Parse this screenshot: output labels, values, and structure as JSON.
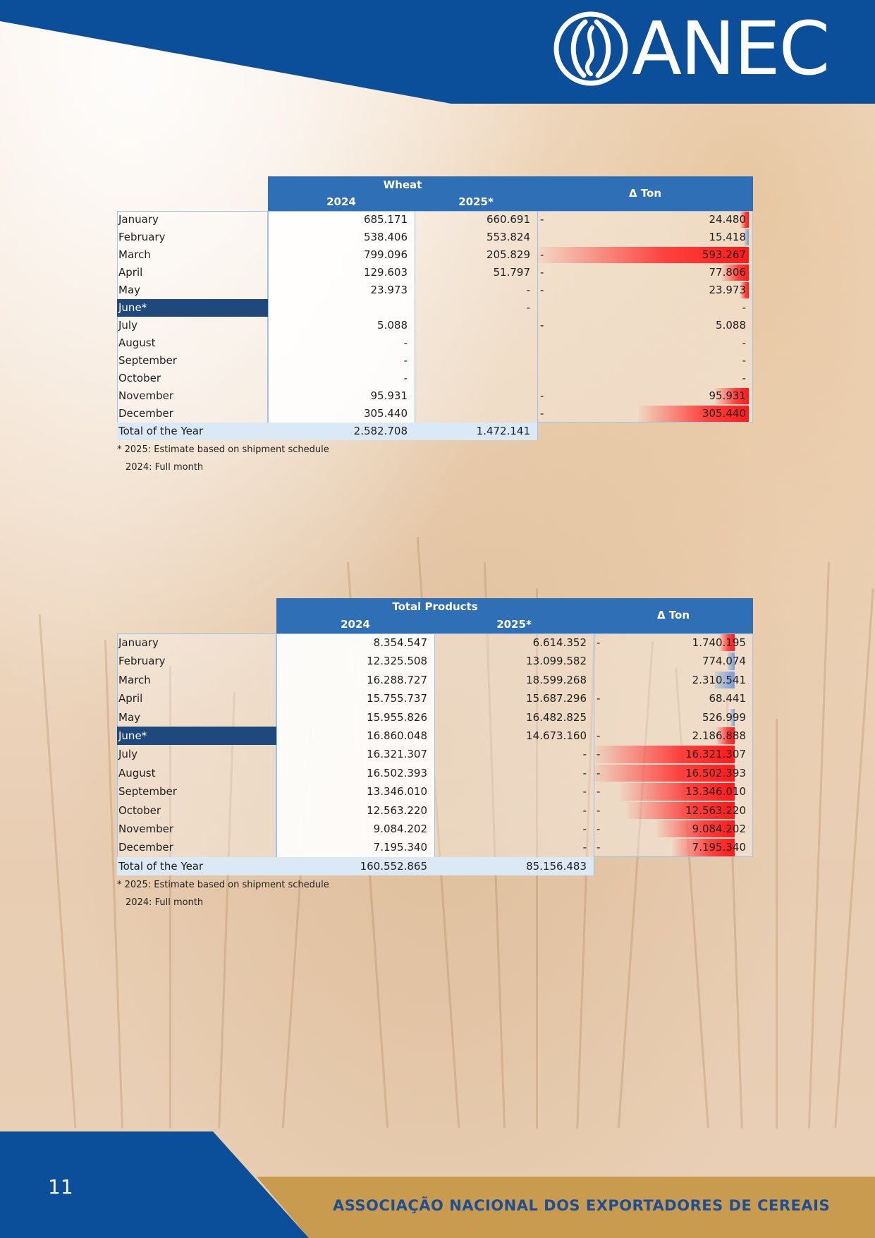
{
  "brand": {
    "name": "ANEC",
    "footer": "ASSOCIAÇÃO NACIONAL DOS EXPORTADORES DE CEREAIS",
    "page_number": "11",
    "colors": {
      "primary_blue": "#0b4f9a",
      "gold": "#c89b4e",
      "header_cell": "#2f6fb6",
      "highlight_row": "#1f497d"
    }
  },
  "wheat_table": {
    "title": "Wheat",
    "col_2024": "2024",
    "col_2025": "2025*",
    "col_delta": "Δ Ton",
    "rows": [
      {
        "month": "January",
        "v2024": "685.171",
        "v2025": "660.691",
        "sign": "-",
        "delta": "24.480",
        "bar": "red",
        "bar_frac": 0.04,
        "highlight": false
      },
      {
        "month": "February",
        "v2024": "538.406",
        "v2025": "553.824",
        "sign": "",
        "delta": "15.418",
        "bar": "blue",
        "bar_frac": 0.02,
        "highlight": false
      },
      {
        "month": "March",
        "v2024": "799.096",
        "v2025": "205.829",
        "sign": "-",
        "delta": "593.267",
        "bar": "red",
        "bar_frac": 1.0,
        "highlight": false
      },
      {
        "month": "April",
        "v2024": "129.603",
        "v2025": "51.797",
        "sign": "-",
        "delta": "77.806",
        "bar": "red",
        "bar_frac": 0.13,
        "highlight": false
      },
      {
        "month": "May",
        "v2024": "23.973",
        "v2025": "-",
        "sign": "-",
        "delta": "23.973",
        "bar": "red",
        "bar_frac": 0.04,
        "highlight": false
      },
      {
        "month": "June*",
        "v2024": "",
        "v2025": "-",
        "sign": "",
        "delta": "-",
        "bar": "",
        "bar_frac": 0,
        "highlight": true
      },
      {
        "month": "July",
        "v2024": "5.088",
        "v2025": "",
        "sign": "-",
        "delta": "5.088",
        "bar": "",
        "bar_frac": 0,
        "highlight": false
      },
      {
        "month": "August",
        "v2024": "-",
        "v2025": "",
        "sign": "",
        "delta": "-",
        "bar": "",
        "bar_frac": 0,
        "highlight": false
      },
      {
        "month": "September",
        "v2024": "-",
        "v2025": "",
        "sign": "",
        "delta": "-",
        "bar": "",
        "bar_frac": 0,
        "highlight": false
      },
      {
        "month": "October",
        "v2024": "-",
        "v2025": "",
        "sign": "",
        "delta": "-",
        "bar": "",
        "bar_frac": 0,
        "highlight": false
      },
      {
        "month": "November",
        "v2024": "95.931",
        "v2025": "",
        "sign": "-",
        "delta": "95.931",
        "bar": "red",
        "bar_frac": 0.16,
        "highlight": false
      },
      {
        "month": "December",
        "v2024": "305.440",
        "v2025": "",
        "sign": "-",
        "delta": "305.440",
        "bar": "red",
        "bar_frac": 0.52,
        "highlight": false
      }
    ],
    "total": {
      "label": "Total of the Year",
      "v2024": "2.582.708",
      "v2025": "1.472.141"
    },
    "notes": [
      "* 2025: Estimate based on shipment schedule",
      "2024: Full month"
    ]
  },
  "total_table": {
    "title": "Total Products",
    "col_2024": "2024",
    "col_2025": "2025*",
    "col_delta": "Δ Ton",
    "rows": [
      {
        "month": "January",
        "v2024": "8.354.547",
        "v2025": "6.614.352",
        "sign": "-",
        "delta": "1.740.195",
        "bar": "red",
        "bar_frac": 0.11,
        "highlight": false
      },
      {
        "month": "February",
        "v2024": "12.325.508",
        "v2025": "13.099.582",
        "sign": "",
        "delta": "774.074",
        "bar": "blue",
        "bar_frac": 0.05,
        "highlight": false
      },
      {
        "month": "March",
        "v2024": "16.288.727",
        "v2025": "18.599.268",
        "sign": "",
        "delta": "2.310.541",
        "bar": "blue",
        "bar_frac": 0.14,
        "highlight": false
      },
      {
        "month": "April",
        "v2024": "15.755.737",
        "v2025": "15.687.296",
        "sign": "-",
        "delta": "68.441",
        "bar": "",
        "bar_frac": 0,
        "highlight": false
      },
      {
        "month": "May",
        "v2024": "15.955.826",
        "v2025": "16.482.825",
        "sign": "",
        "delta": "526.999",
        "bar": "blue",
        "bar_frac": 0.03,
        "highlight": false
      },
      {
        "month": "June*",
        "v2024": "16.860.048",
        "v2025": "14.673.160",
        "sign": "-",
        "delta": "2.186.888",
        "bar": "red",
        "bar_frac": 0.13,
        "highlight": true
      },
      {
        "month": "July",
        "v2024": "16.321.307",
        "v2025": "-",
        "sign": "-",
        "delta": "16.321.307",
        "bar": "red",
        "bar_frac": 0.99,
        "highlight": false
      },
      {
        "month": "August",
        "v2024": "16.502.393",
        "v2025": "-",
        "sign": "-",
        "delta": "16.502.393",
        "bar": "red",
        "bar_frac": 1.0,
        "highlight": false
      },
      {
        "month": "September",
        "v2024": "13.346.010",
        "v2025": "-",
        "sign": "-",
        "delta": "13.346.010",
        "bar": "red",
        "bar_frac": 0.81,
        "highlight": false
      },
      {
        "month": "October",
        "v2024": "12.563.220",
        "v2025": "-",
        "sign": "-",
        "delta": "12.563.220",
        "bar": "red",
        "bar_frac": 0.76,
        "highlight": false
      },
      {
        "month": "November",
        "v2024": "9.084.202",
        "v2025": "-",
        "sign": "-",
        "delta": "9.084.202",
        "bar": "red",
        "bar_frac": 0.55,
        "highlight": false
      },
      {
        "month": "December",
        "v2024": "7.195.340",
        "v2025": "-",
        "sign": "-",
        "delta": "7.195.340",
        "bar": "red",
        "bar_frac": 0.44,
        "highlight": false
      }
    ],
    "total": {
      "label": "Total of the Year",
      "v2024": "160.552.865",
      "v2025": "85.156.483"
    },
    "notes": [
      "* 2025: Estimate based on shipment schedule",
      "2024: Full month"
    ]
  }
}
